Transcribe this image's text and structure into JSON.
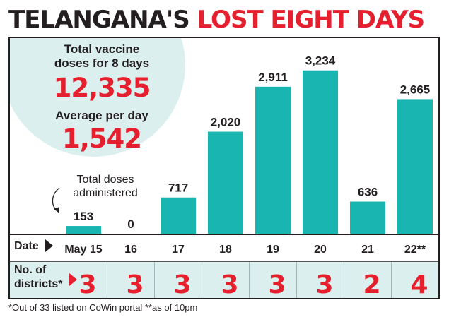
{
  "title": {
    "part1": "TELANGANA'S",
    "part2": "LOST EIGHT DAYS"
  },
  "stats": {
    "total_label_line1": "Total vaccine",
    "total_label_line2": "doses for 8 days",
    "total_value": "12,335",
    "average_label": "Average per day",
    "average_value": "1,542"
  },
  "annotation": {
    "line1": "Total doses",
    "line2": "administered"
  },
  "rows": {
    "date_label": "Date",
    "districts_label_line1": "No. of",
    "districts_label_line2": "districts*"
  },
  "footnote": "*Out of 33 listed on CoWin portal  **as of 10pm",
  "colors": {
    "bar": "#19b5b1",
    "accent_red": "#e51f2d",
    "circle": "#dcefef",
    "row_band": "#dcefef",
    "text": "#231f20"
  },
  "chart_data": {
    "type": "bar",
    "title": "TELANGANA'S LOST EIGHT DAYS",
    "xlabel": "Date",
    "ylabel": "Total doses administered",
    "categories": [
      "May 15",
      "16",
      "17",
      "18",
      "19",
      "20",
      "21",
      "22**"
    ],
    "values": [
      153,
      0,
      717,
      2020,
      2911,
      3234,
      636,
      2665
    ],
    "value_labels": [
      "153",
      "0",
      "717",
      "2,020",
      "2,911",
      "3,234",
      "636",
      "2,665"
    ],
    "districts": [
      "3",
      "3",
      "3",
      "3",
      "3",
      "3",
      "2",
      "4"
    ],
    "ylim": [
      0,
      3300
    ],
    "grid": false,
    "legend": "none"
  }
}
